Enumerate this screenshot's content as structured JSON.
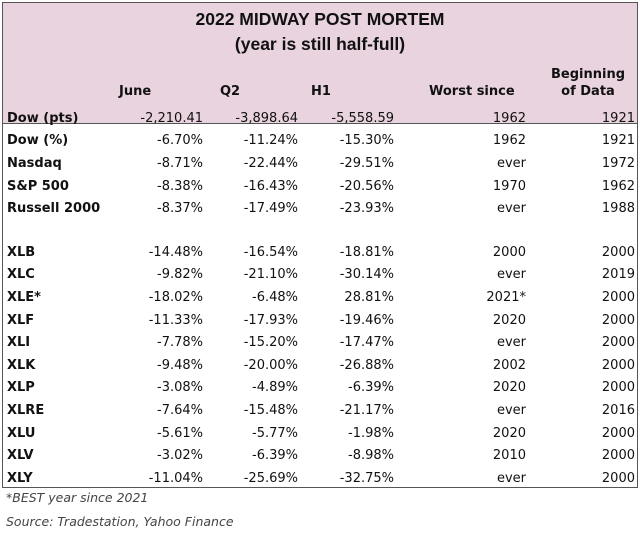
{
  "title": "2022 MIDWAY POST MORTEM",
  "subtitle": "(year is still half-full)",
  "columns": [
    "June",
    "Q2",
    "H1",
    "Worst since",
    "Beginning",
    "of Data"
  ],
  "header_colors": {
    "background": "#e9d3de"
  },
  "index_rows": [
    {
      "label": "Dow (pts)",
      "june": "-2,210.41",
      "q2": "-3,898.64",
      "h1": "-5,558.59",
      "worst_since": "1962",
      "beginning": "1921"
    },
    {
      "label": "Dow (%)",
      "june": "-6.70%",
      "q2": "-11.24%",
      "h1": "-15.30%",
      "worst_since": "1962",
      "beginning": "1921"
    },
    {
      "label": "Nasdaq",
      "june": "-8.71%",
      "q2": "-22.44%",
      "h1": "-29.51%",
      "worst_since": "ever",
      "beginning": "1972"
    },
    {
      "label": "S&P 500",
      "june": "-8.38%",
      "q2": "-16.43%",
      "h1": "-20.56%",
      "worst_since": "1970",
      "beginning": "1962"
    },
    {
      "label": "Russell 2000",
      "june": "-8.37%",
      "q2": "-17.49%",
      "h1": "-23.93%",
      "worst_since": "ever",
      "beginning": "1988"
    }
  ],
  "sector_rows": [
    {
      "label": "XLB",
      "june": "-14.48%",
      "q2": "-16.54%",
      "h1": "-18.81%",
      "worst_since": "2000",
      "beginning": "2000"
    },
    {
      "label": "XLC",
      "june": "-9.82%",
      "q2": "-21.10%",
      "h1": "-30.14%",
      "worst_since": "ever",
      "beginning": "2019"
    },
    {
      "label": "XLE*",
      "june": "-18.02%",
      "q2": "-6.48%",
      "h1": "28.81%",
      "worst_since": "2021*",
      "beginning": "2000"
    },
    {
      "label": "XLF",
      "june": "-11.33%",
      "q2": "-17.93%",
      "h1": "-19.46%",
      "worst_since": "2020",
      "beginning": "2000"
    },
    {
      "label": "XLI",
      "june": "-7.78%",
      "q2": "-15.20%",
      "h1": "-17.47%",
      "worst_since": "ever",
      "beginning": "2000"
    },
    {
      "label": "XLK",
      "june": "-9.48%",
      "q2": "-20.00%",
      "h1": "-26.88%",
      "worst_since": "2002",
      "beginning": "2000"
    },
    {
      "label": "XLP",
      "june": "-3.08%",
      "q2": "-4.89%",
      "h1": "-6.39%",
      "worst_since": "2020",
      "beginning": "2000"
    },
    {
      "label": "XLRE",
      "june": "-7.64%",
      "q2": "-15.48%",
      "h1": "-21.17%",
      "worst_since": "ever",
      "beginning": "2016"
    },
    {
      "label": "XLU",
      "june": "-5.61%",
      "q2": "-5.77%",
      "h1": "-1.98%",
      "worst_since": "2020",
      "beginning": "2000"
    },
    {
      "label": "XLV",
      "june": "-3.02%",
      "q2": "-6.39%",
      "h1": "-8.98%",
      "worst_since": "2010",
      "beginning": "2000"
    },
    {
      "label": "XLY",
      "june": "-11.04%",
      "q2": "-25.69%",
      "h1": "-32.75%",
      "worst_since": "ever",
      "beginning": "2000"
    }
  ],
  "footnote": "*BEST year since 2021",
  "source": "Source: Tradestation, Yahoo Finance"
}
